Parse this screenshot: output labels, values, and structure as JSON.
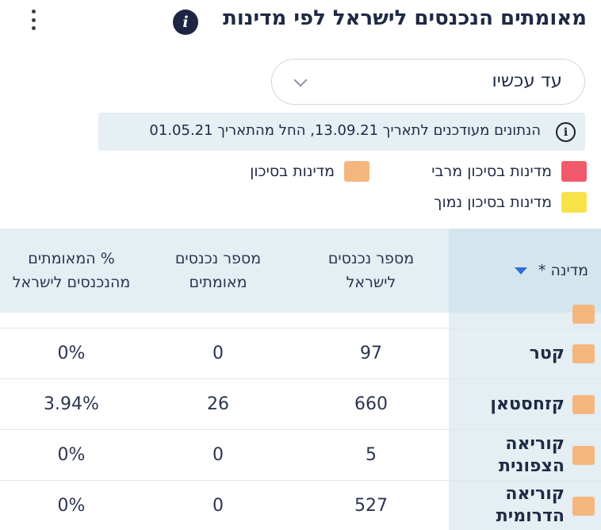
{
  "header": {
    "title": "מאומתים הנכנסים לישראל לפי מדינות",
    "info_icon": "i"
  },
  "period_select": {
    "selected": "עד עכשיו"
  },
  "notice": {
    "icon": "i",
    "text": "הנתונים מעודכנים לתאריך 13.09.21, החל מהתאריך 01.05.21"
  },
  "legend": [
    {
      "label": "מדינות בסיכון מרבי",
      "color": "#f05a6b"
    },
    {
      "label": "מדינות בסיכון",
      "color": "#f5b67e"
    },
    {
      "label": "מדינות בסיכון נמוך",
      "color": "#f8e24a"
    }
  ],
  "table": {
    "headers": {
      "country": "מדינה *",
      "entrants": "מספר נכנסים לישראל",
      "confirmed": "מספר נכנסים מאומתים",
      "percent": "% המאומתים מהנכנסים לישראל"
    },
    "rows": [
      {
        "country": "קטר",
        "entrants": "97",
        "confirmed": "0",
        "percent": "0%",
        "risk_color": "#f5b67e"
      },
      {
        "country": "קזחסטאן",
        "entrants": "660",
        "confirmed": "26",
        "percent": "3.94%",
        "risk_color": "#f5b67e"
      },
      {
        "country": "קוריאה הצפונית",
        "entrants": "5",
        "confirmed": "0",
        "percent": "0%",
        "risk_color": "#f5b67e"
      },
      {
        "country": "קוריאה הדרומית",
        "entrants": "527",
        "confirmed": "0",
        "percent": "0%",
        "risk_color": "#f5b67e"
      }
    ]
  }
}
